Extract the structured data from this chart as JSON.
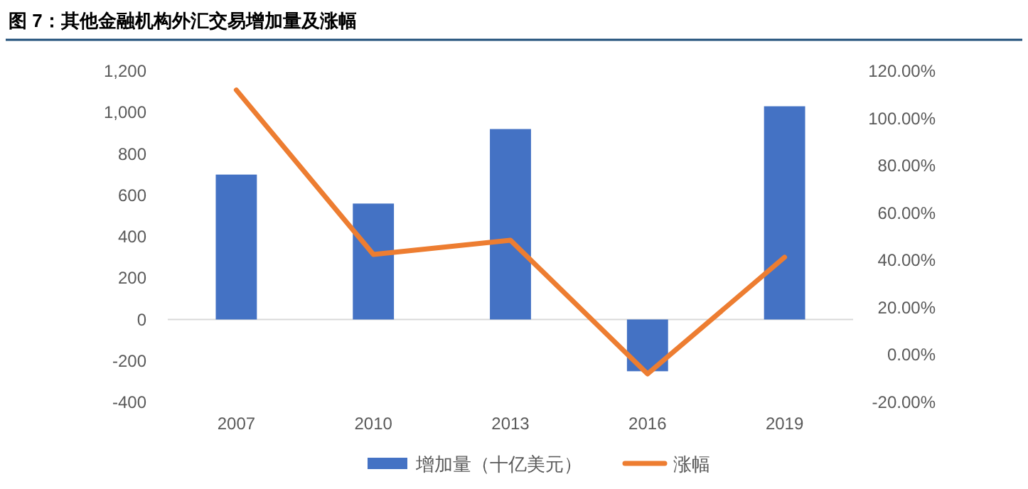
{
  "chart_data": {
    "type": "bar",
    "title": "图 7：其他金融机构外汇交易增加量及涨幅",
    "categories": [
      "2007",
      "2010",
      "2013",
      "2016",
      "2019"
    ],
    "series": [
      {
        "name": "增加量（十亿美元）",
        "color": "#4472c4",
        "values": [
          700,
          560,
          920,
          -250,
          1030
        ]
      },
      {
        "name": "涨幅",
        "type": "line",
        "axis": "y2",
        "color": "#ed7d31",
        "values": [
          112,
          42.5,
          48.5,
          -8,
          41.3
        ]
      }
    ],
    "ylim": [
      -400,
      1200
    ],
    "yticks": [
      {
        "value": -400,
        "label": "-400"
      },
      {
        "value": -200,
        "label": "-200"
      },
      0,
      200,
      400,
      600,
      800,
      {
        "value": 1000,
        "label": "1,000"
      },
      {
        "value": 1200,
        "label": "1,200"
      }
    ],
    "y2lim": [
      -20,
      120
    ],
    "y2ticks": [
      {
        "value": -20,
        "label": "-20.00%"
      },
      {
        "value": 0,
        "label": "0.00%"
      },
      {
        "value": 20,
        "label": "20.00%"
      },
      {
        "value": 40,
        "label": "40.00%"
      },
      {
        "value": 60,
        "label": "60.00%"
      },
      {
        "value": 80,
        "label": "80.00%"
      },
      {
        "value": 100,
        "label": "100.00%"
      },
      {
        "value": 120,
        "label": "120.00%"
      }
    ],
    "legend": "bottom"
  }
}
